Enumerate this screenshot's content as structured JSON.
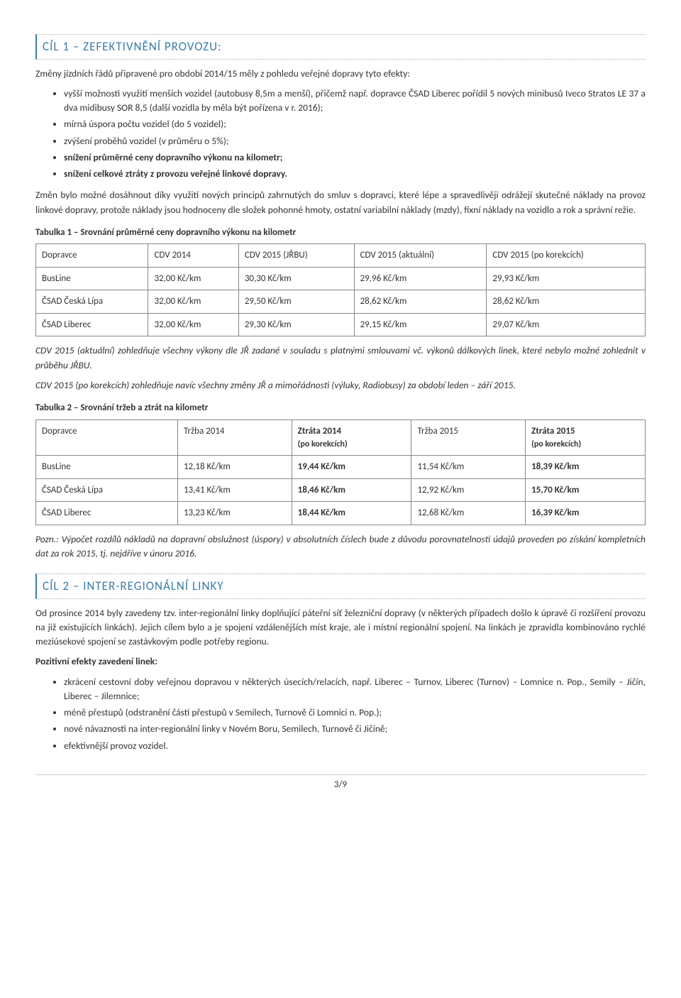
{
  "section1": {
    "title": "CÍL 1 – ZEFEKTIVNĚNÍ PROVOZU:",
    "intro": "Změny jízdních řádů připravené pro období 2014/15 měly z pohledu veřejné dopravy tyto efekty:",
    "bullets": [
      "vyšší možnosti využití menších vozidel (autobusy 8,5m a menší), přičemž např. dopravce ČSAD Liberec pořídil 5 nových minibusů Iveco Stratos LE 37 a dva midibusy SOR 8,5 (další vozidla by měla být pořízena v r. 2016);",
      "mírná úspora počtu vozidel (do 5 vozidel);",
      "zvýšení proběhů vozidel (v průměru o 5%);",
      "snížení průměrné ceny dopravního výkonu na kilometr;",
      "snížení celkové ztráty z provozu veřejné linkové dopravy."
    ],
    "bullet_bold": [
      false,
      false,
      false,
      true,
      true
    ],
    "para2": "Změn bylo možné dosáhnout díky využití nových principů zahrnutých do smluv s dopravci, které lépe a spravedlivěji odrážejí skutečné náklady na provoz linkové dopravy, protože náklady jsou hodnoceny dle složek pohonné hmoty, ostatní variabilní náklady (mzdy), fixní náklady na vozidlo a rok a správní režie."
  },
  "table1": {
    "caption": "Tabulka 1 – Srovnání průměrné ceny dopravního výkonu na kilometr",
    "headers": [
      "Dopravce",
      "CDV 2014",
      "CDV 2015 (JŘBU)",
      "CDV 2015 (aktuální)",
      "CDV 2015 (po korekcích)"
    ],
    "rows": [
      [
        "BusLine",
        "32,00 Kč/km",
        "30,30 Kč/km",
        "29,96 Kč/km",
        "29,93 Kč/km"
      ],
      [
        "ČSAD Česká Lípa",
        "32,00 Kč/km",
        "29,50 Kč/km",
        "28,62 Kč/km",
        "28,62 Kč/km"
      ],
      [
        "ČSAD Liberec",
        "32,00 Kč/km",
        "29,30 Kč/km",
        "29,15 Kč/km",
        "29,07 Kč/km"
      ]
    ],
    "note1": "CDV 2015 (aktuální) zohledňuje všechny výkony dle JŘ zadané v souladu s platnými smlouvami vč. výkonů dálkových linek, které nebylo možné zohlednit v průběhu JŘBU.",
    "note2": "CDV 2015 (po korekcích) zohledňuje navíc všechny změny JŘ a mimořádnosti (výluky, Radiobusy) za období leden – září 2015."
  },
  "table2": {
    "caption": "Tabulka 2 – Srovnání tržeb a ztrát na kilometr",
    "headers": [
      "Dopravce",
      "Tržba 2014",
      "Ztráta 2014",
      "Tržba 2015",
      "Ztráta 2015"
    ],
    "subheaders": [
      "",
      "",
      "(po korekcích)",
      "",
      "(po korekcích)"
    ],
    "rows": [
      [
        "BusLine",
        "12,18 Kč/km",
        "19,44 Kč/km",
        "11,54 Kč/km",
        "18,39 Kč/km"
      ],
      [
        "ČSAD Česká Lípa",
        "13,41 Kč/km",
        "18,46 Kč/km",
        "12,92 Kč/km",
        "15,70 Kč/km"
      ],
      [
        "ČSAD Liberec",
        "13,23 Kč/km",
        "18,44 Kč/km",
        "12,68 Kč/km",
        "16,39 Kč/km"
      ]
    ],
    "bold_cols": [
      false,
      false,
      true,
      false,
      true
    ],
    "note": "Pozn.: Výpočet rozdílů nákladů na dopravní obslužnost (úspory) v absolutních číslech bude z důvodu porovnatelnosti údajů proveden po získání kompletních dat za rok 2015, tj. nejdříve v únoru 2016."
  },
  "section2": {
    "title": "CÍL 2 – INTER-REGIONÁLNÍ LINKY",
    "para1": "Od prosince 2014 byly zavedeny tzv. inter-regionální linky doplňující páteřní síť železniční dopravy (v některých případech došlo k úpravě či rozšíření provozu na již existujících linkách). Jejich cílem bylo a je spojení vzdálenějších míst kraje, ale i místní regionální spojení. Na linkách je zpravidla kombinováno rychlé meziúsekové spojení se zastávkovým podle potřeby regionu.",
    "subhead": "Pozitivní efekty zavedení linek:",
    "bullets": [
      "zkrácení cestovní doby veřejnou dopravou v některých úsecích/relacích, např. Liberec – Turnov, Liberec (Turnov) – Lomnice n. Pop., Semily – Jičín, Liberec – Jilemnice;",
      "méně přestupů (odstranění části přestupů v Semilech, Turnově či Lomnici n. Pop.);",
      "nové návaznosti na inter-regionální linky v Novém Boru, Semilech, Turnově či Jičíně;",
      "efektivnější provoz vozidel."
    ]
  },
  "footer": "3/9"
}
